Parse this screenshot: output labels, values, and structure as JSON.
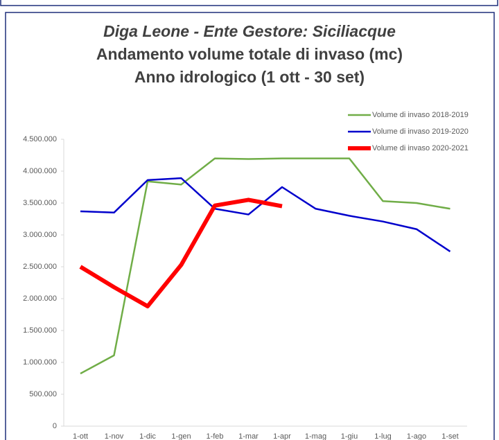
{
  "chart_data": {
    "type": "line",
    "title": "Diga Leone - Ente Gestore: Siciliacque",
    "subtitle": "Andamento volume totale di invaso (mc)",
    "subtitle2": "Anno idrologico (1 ott - 30 set)",
    "categories": [
      "1-ott",
      "1-nov",
      "1-dic",
      "1-gen",
      "1-feb",
      "1-mar",
      "1-apr",
      "1-mag",
      "1-giu",
      "1-lug",
      "1-ago",
      "1-set"
    ],
    "series": [
      {
        "name": "Volume di invaso 2018-2019",
        "color": "#70ad47",
        "width": 2.5,
        "values": [
          825000,
          1110000,
          3840000,
          3790000,
          4200000,
          4190000,
          4200000,
          4200000,
          4200000,
          3530000,
          3500000,
          3410000
        ]
      },
      {
        "name": "Volume di invaso 2019-2020",
        "color": "#0000cc",
        "width": 2.5,
        "values": [
          3370000,
          3350000,
          3860000,
          3890000,
          3410000,
          3320000,
          3750000,
          3410000,
          3300000,
          3210000,
          3090000,
          2740000
        ]
      },
      {
        "name": "Volume di invaso 2020-2021",
        "color": "#ff0000",
        "width": 6,
        "values": [
          2500000,
          2180000,
          1880000,
          2530000,
          3460000,
          3550000,
          3450000,
          null,
          null,
          null,
          null,
          null
        ]
      }
    ],
    "ylim": [
      0,
      4500000
    ],
    "yticks": [
      0,
      {
        "value": 500000,
        "label": "500.000"
      },
      {
        "value": 1000000,
        "label": "1.000.000"
      },
      {
        "value": 1500000,
        "label": "1.500.000"
      },
      {
        "value": 2000000,
        "label": "2.000.000"
      },
      {
        "value": 2500000,
        "label": "2.500.000"
      },
      {
        "value": 3000000,
        "label": "3.000.000"
      },
      {
        "value": 3500000,
        "label": "3.500.000"
      },
      {
        "value": 4000000,
        "label": "4.000.000"
      },
      {
        "value": 4500000,
        "label": "4.500.000"
      }
    ],
    "grid": false
  }
}
